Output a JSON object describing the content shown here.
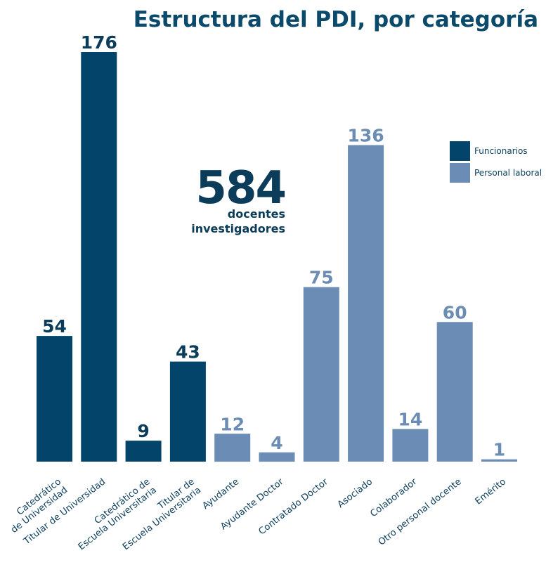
{
  "chart_data": {
    "type": "bar",
    "title": "Estructura del PDI, por categoría",
    "categories": [
      [
        "Catedrático",
        "de Universidad"
      ],
      [
        "Titular de Universidad"
      ],
      [
        "Catedrático de",
        "Escuela Universitaria"
      ],
      [
        "Titular de",
        "Escuela Universitaria"
      ],
      [
        "Ayudante"
      ],
      [
        "Ayudante Doctor"
      ],
      [
        "Contratado Doctor"
      ],
      [
        "Asociado"
      ],
      [
        "Colaborador"
      ],
      [
        "Otro personal docente"
      ],
      [
        "Emérito"
      ]
    ],
    "values": [
      54,
      176,
      9,
      43,
      12,
      4,
      75,
      136,
      14,
      60,
      1
    ],
    "groups": [
      "Funcionarios",
      "Funcionarios",
      "Funcionarios",
      "Funcionarios",
      "Personal laboral",
      "Personal laboral",
      "Personal laboral",
      "Personal laboral",
      "Personal laboral",
      "Personal laboral",
      "Personal laboral"
    ],
    "legend": [
      {
        "name": "Funcionarios",
        "color": "#03456a"
      },
      {
        "name": "Personal laboral",
        "color": "#6b8db5"
      }
    ],
    "legend_position": "top-right",
    "total": {
      "number": "584",
      "label_line1": "docentes",
      "label_line2": "investigadores"
    },
    "colors": {
      "dark_label": "#0b3d5a",
      "light_label": "#6b8db5"
    },
    "xlabel": "",
    "ylabel": "",
    "ylim": [
      0,
      176
    ],
    "grid": false
  }
}
